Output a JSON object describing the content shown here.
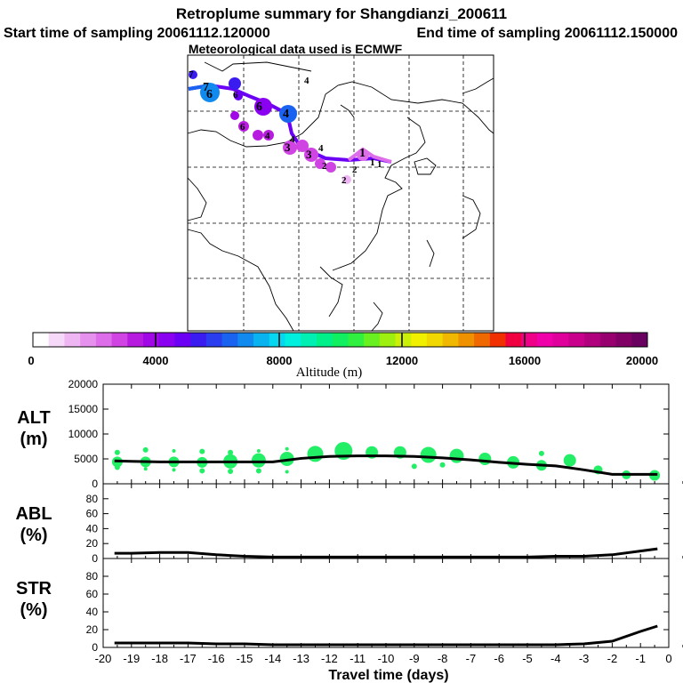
{
  "header": {
    "title": "Retroplume summary for Shangdianzi_200611",
    "start_time": "Start time of sampling 20061112.120000",
    "end_time": "End time of sampling 20061112.150000",
    "met_data": "Meteorological data used is ECMWF"
  },
  "map": {
    "plume_labels": [
      "7",
      "6",
      "4",
      "3",
      "2",
      "1"
    ]
  },
  "colorbar": {
    "label": "Altitude (m)",
    "ticks": [
      "0",
      "4000",
      "8000",
      "12000",
      "16000",
      "20000"
    ],
    "colors": [
      "#ffffff",
      "#f6d8f8",
      "#efb6f4",
      "#e791ef",
      "#de6de9",
      "#cf44e3",
      "#b81be0",
      "#a108e6",
      "#8a00f0",
      "#6b00f5",
      "#3a1cf0",
      "#2a3ef0",
      "#1a63f0",
      "#118af0",
      "#09b3f0",
      "#05d7f0",
      "#00f0e0",
      "#00f0b4",
      "#00f08a",
      "#10f060",
      "#30f040",
      "#68f020",
      "#9df010",
      "#cdf008",
      "#f0f000",
      "#f0d800",
      "#f0b800",
      "#f09200",
      "#f06800",
      "#f03000",
      "#f00040",
      "#f00088",
      "#f000a8",
      "#e0009c",
      "#c8008c",
      "#b0007e",
      "#980070",
      "#800066",
      "#6a0060"
    ]
  },
  "chart_data": [
    {
      "type": "scatter",
      "name": "ALT",
      "ylabel": "ALT\n(m)",
      "ylabel_line1": "ALT",
      "ylabel_line2": "(m)",
      "ylim": [
        0,
        20000
      ],
      "yticks": [
        "0",
        "5000",
        "10000",
        "15000",
        "20000"
      ],
      "line": {
        "x": [
          -19.6,
          -19,
          -18,
          -17,
          -16,
          -15,
          -14,
          -13,
          -12,
          -11,
          -10,
          -9,
          -8,
          -7,
          -6,
          -5,
          -4,
          -3,
          -2,
          -1,
          -0.4
        ],
        "y": [
          4600,
          4500,
          4400,
          4400,
          4400,
          4400,
          4400,
          5100,
          5500,
          5600,
          5600,
          5500,
          5200,
          4800,
          4300,
          3900,
          3600,
          2800,
          1900,
          1900,
          1900
        ]
      },
      "points": {
        "x": [
          -19.5,
          -18.5,
          -17.5,
          -16.5,
          -15.5,
          -14.5,
          -13.5,
          -12.5,
          -11.5,
          -10.5,
          -9.5,
          -8.5,
          -7.5,
          -6.5,
          -5.5,
          -4.5,
          -3.5,
          -2.5,
          -1.5,
          -0.5,
          -19.5,
          -18.5,
          -17.5,
          -16.5,
          -15.5,
          -14.5,
          -13.5,
          -19.5,
          -18.5,
          -17.5,
          -16.5,
          -15.5,
          -14.5,
          -13.5,
          -9,
          -8,
          -4.5
        ],
        "y": [
          4400,
          4400,
          4400,
          4300,
          4500,
          4700,
          5000,
          6000,
          6600,
          6300,
          6300,
          5800,
          5600,
          5000,
          4300,
          3700,
          4700,
          2800,
          1800,
          1700,
          6300,
          6800,
          6600,
          6500,
          6300,
          6600,
          7000,
          3300,
          3000,
          2800,
          2600,
          2500,
          2600,
          2400,
          3500,
          3800,
          6100
        ],
        "size": [
          6,
          6,
          6,
          6,
          8,
          8,
          8,
          9,
          10,
          7,
          7,
          9,
          8,
          7,
          7,
          6,
          7,
          5,
          5,
          6,
          3,
          3,
          2,
          3,
          3,
          2,
          2,
          3,
          2,
          2,
          3,
          3,
          3,
          2,
          3,
          3,
          3
        ]
      }
    },
    {
      "type": "line",
      "name": "ABL",
      "ylabel_line1": "ABL",
      "ylabel_line2": "(%)",
      "ylim": [
        0,
        100
      ],
      "yticks": [
        "0",
        "20",
        "40",
        "60",
        "80"
      ],
      "x": [
        -19.6,
        -19,
        -18,
        -17,
        -16,
        -15,
        -14,
        -13,
        -12,
        -11,
        -10,
        -9,
        -8,
        -7,
        -6,
        -5,
        -4,
        -3,
        -2,
        -1,
        -0.4
      ],
      "y": [
        7,
        7,
        8,
        8,
        5,
        3,
        2,
        2,
        2,
        2,
        2,
        2,
        2,
        2,
        2,
        2,
        3,
        3,
        5,
        10,
        13
      ]
    },
    {
      "type": "line",
      "name": "STR",
      "ylabel_line1": "STR",
      "ylabel_line2": "(%)",
      "ylim": [
        0,
        100
      ],
      "yticks": [
        "0",
        "20",
        "40",
        "60",
        "80"
      ],
      "x": [
        -19.6,
        -19,
        -18,
        -17,
        -16,
        -15,
        -14,
        -13,
        -12,
        -11,
        -10,
        -9,
        -8,
        -7,
        -6,
        -5,
        -4,
        -3,
        -2,
        -1,
        -0.4
      ],
      "y": [
        5,
        5,
        5,
        5,
        4,
        4,
        3,
        3,
        3,
        3,
        3,
        3,
        3,
        3,
        3,
        3,
        3,
        4,
        7,
        18,
        24
      ]
    }
  ],
  "xaxis": {
    "title": "Travel time (days)",
    "ticks": [
      "-20",
      "-19",
      "-18",
      "-17",
      "-16",
      "-15",
      "-14",
      "-13",
      "-12",
      "-11",
      "-10",
      "-9",
      "-8",
      "-7",
      "-6",
      "-5",
      "-4",
      "-3",
      "-2",
      "-1",
      "0"
    ],
    "xlim": [
      -20,
      0
    ]
  }
}
